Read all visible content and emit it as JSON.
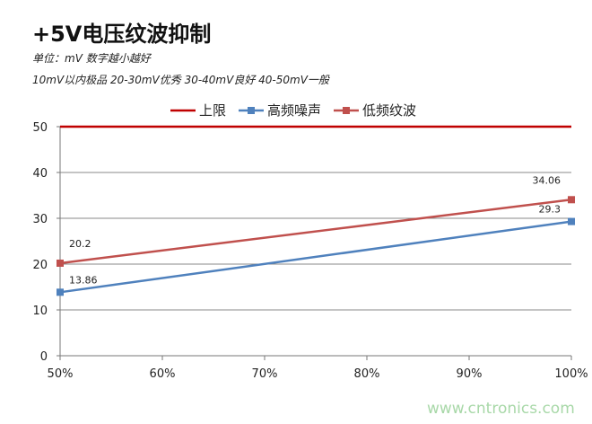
{
  "header": {
    "title": "+5V电压纹波抑制",
    "subtitle1": "单位：mV  数字越小越好",
    "subtitle2": "10mV以内极品  20-30mV优秀  30-40mV良好  40-50mV一般"
  },
  "watermark": "www.cntronics.com",
  "chart_data": {
    "type": "line",
    "categories": [
      "50%",
      "60%",
      "70%",
      "80%",
      "90%",
      "100%"
    ],
    "yticks": [
      "0",
      "10",
      "20",
      "30",
      "40",
      "50"
    ],
    "ylim": [
      0,
      50
    ],
    "grid": true,
    "legend_position": "top",
    "series": [
      {
        "name": "上限",
        "color": "#c00000",
        "x": [
          "50%",
          "100%"
        ],
        "values": [
          50,
          50
        ],
        "labels": []
      },
      {
        "name": "高频噪声",
        "color": "#4f81bd",
        "x": [
          "50%",
          "100%"
        ],
        "values": [
          13.86,
          29.3
        ],
        "labels": [
          "13.86",
          "29.3"
        ]
      },
      {
        "name": "低频纹波",
        "color": "#c0504d",
        "x": [
          "50%",
          "100%"
        ],
        "values": [
          20.2,
          34.06
        ],
        "labels": [
          "20.2",
          "34.06"
        ]
      }
    ]
  }
}
